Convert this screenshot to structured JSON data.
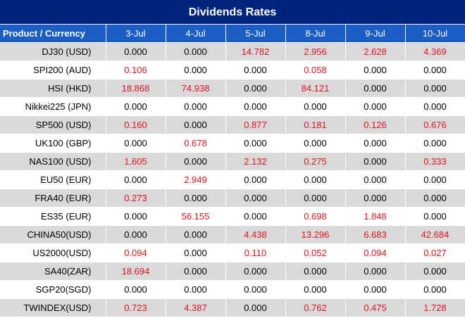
{
  "title": "Dividends Rates",
  "colors": {
    "header_dark": "#00247d",
    "header_blue": "#1a5dc4",
    "highlight_red": "#e8111c",
    "row_shade": "#d9d9d9"
  },
  "table": {
    "headers": [
      "Product / Currency",
      "3-Jul",
      "4-Jul",
      "5-Jul",
      "8-Jul",
      "9-Jul",
      "10-Jul"
    ],
    "rows": [
      {
        "product": "DJ30 (USD)",
        "values": [
          "0.000",
          "0.000",
          "14.782",
          "2.956",
          "2.628",
          "4.369"
        ]
      },
      {
        "product": "SPI200 (AUD)",
        "values": [
          "0.106",
          "0.000",
          "0.000",
          "0.058",
          "0.000",
          "0.000"
        ]
      },
      {
        "product": "HSI (HKD)",
        "values": [
          "18.868",
          "74.938",
          "0.000",
          "84.121",
          "0.000",
          "0.000"
        ]
      },
      {
        "product": "Nikkei225 (JPN)",
        "values": [
          "0.000",
          "0.000",
          "0.000",
          "0.000",
          "0.000",
          "0.000"
        ]
      },
      {
        "product": "SP500 (USD)",
        "values": [
          "0.160",
          "0.000",
          "0.877",
          "0.181",
          "0.126",
          "0.676"
        ]
      },
      {
        "product": "UK100 (GBP)",
        "values": [
          "0.000",
          "0.678",
          "0.000",
          "0.000",
          "0.000",
          "0.000"
        ]
      },
      {
        "product": "NAS100 (USD)",
        "values": [
          "1.605",
          "0.000",
          "2.132",
          "0.275",
          "0.000",
          "0.333"
        ]
      },
      {
        "product": "EU50 (EUR)",
        "values": [
          "0.000",
          "2.949",
          "0.000",
          "0.000",
          "0.000",
          "0.000"
        ]
      },
      {
        "product": "FRA40 (EUR)",
        "values": [
          "0.273",
          "0.000",
          "0.000",
          "0.000",
          "0.000",
          "0.000"
        ]
      },
      {
        "product": "ES35 (EUR)",
        "values": [
          "0.000",
          "56.155",
          "0.000",
          "0.698",
          "1.848",
          "0.000"
        ]
      },
      {
        "product": "CHINA50(USD)",
        "values": [
          "0.000",
          "0.000",
          "4.438",
          "13.296",
          "6.683",
          "42.684"
        ]
      },
      {
        "product": "US2000(USD)",
        "values": [
          "0.094",
          "0.000",
          "0.110",
          "0.052",
          "0.094",
          "0.027"
        ]
      },
      {
        "product": "SA40(ZAR)",
        "values": [
          "18.694",
          "0.000",
          "0.000",
          "0.000",
          "0.000",
          "0.000"
        ]
      },
      {
        "product": "SGP20(SGD)",
        "values": [
          "0.000",
          "0.000",
          "0.000",
          "0.000",
          "0.000",
          "0.000"
        ]
      },
      {
        "product": "TWINDEX(USD)",
        "values": [
          "0.723",
          "4.387",
          "0.000",
          "0.762",
          "0.475",
          "1.728"
        ]
      }
    ]
  }
}
